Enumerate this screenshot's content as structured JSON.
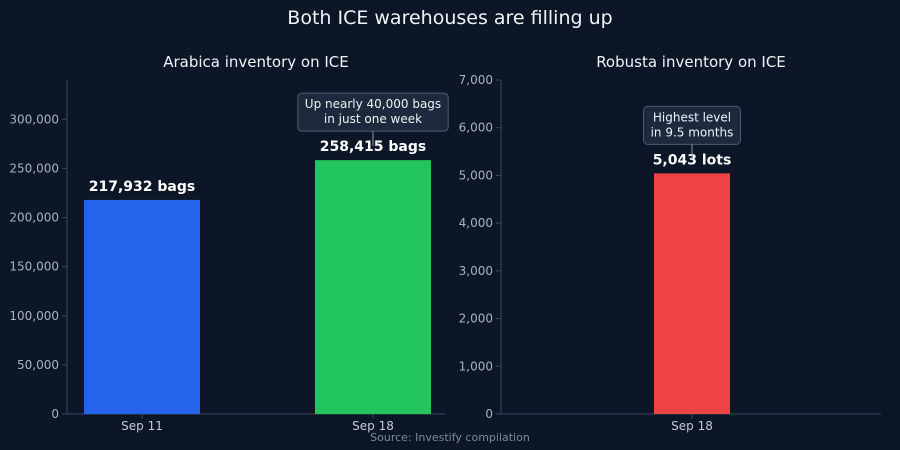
{
  "title": "Both ICE warehouses are filling up",
  "source": "Source: Investify compilation",
  "chart_data": [
    {
      "type": "bar",
      "title": "Arabica inventory on ICE",
      "categories": [
        "Sep 11",
        "Sep 18"
      ],
      "values": [
        217932,
        258415
      ],
      "colors": [
        "#2563eb",
        "#22c55e"
      ],
      "data_labels": [
        "217,932 bags",
        "258,415 bags"
      ],
      "ylim": [
        0,
        340000
      ],
      "yticks": [
        0,
        50000,
        100000,
        150000,
        200000,
        250000,
        300000
      ],
      "ytick_labels": [
        "0",
        "50,000",
        "100,000",
        "150,000",
        "200,000",
        "250,000",
        "300,000"
      ],
      "grid": false,
      "annotation": {
        "target_index": 1,
        "lines": [
          "Up nearly 40,000 bags",
          "in just one week"
        ]
      }
    },
    {
      "type": "bar",
      "title": "Robusta inventory on ICE",
      "categories": [
        "Sep 18"
      ],
      "values": [
        5043
      ],
      "colors": [
        "#ef4444"
      ],
      "data_labels": [
        "5,043 lots"
      ],
      "ylim": [
        0,
        7000
      ],
      "yticks": [
        0,
        1000,
        2000,
        3000,
        4000,
        5000,
        6000,
        7000
      ],
      "ytick_labels": [
        "0",
        "1,000",
        "2,000",
        "3,000",
        "4,000",
        "5,000",
        "6,000",
        "7,000"
      ],
      "grid": false,
      "annotation": {
        "target_index": 0,
        "lines": [
          "Highest level",
          "in 9.5 months"
        ]
      }
    }
  ]
}
